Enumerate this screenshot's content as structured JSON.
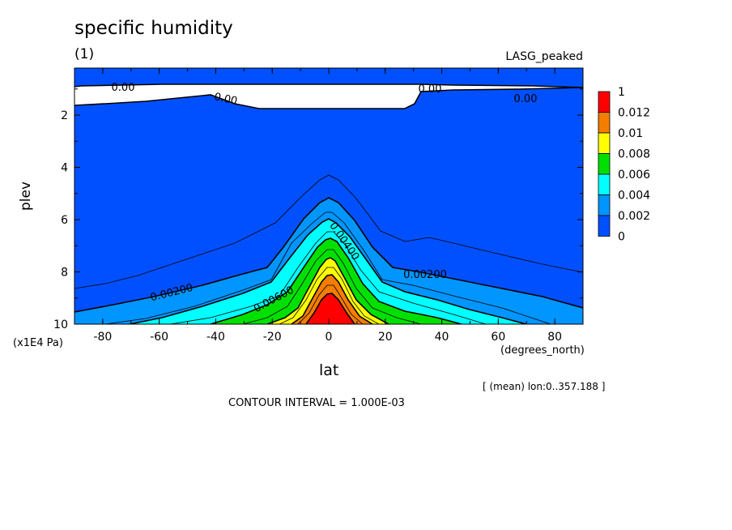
{
  "chart_data": {
    "type": "contour",
    "title": "specific humidity",
    "subtitle": "(1)",
    "run_label": "LASG_peaked",
    "xlabel": "lat",
    "xunits": "(degrees_north)",
    "ylabel": "plev",
    "yunits": "(x1E4 Pa)",
    "xlim": [
      -90,
      90
    ],
    "ylim": [
      0.2,
      10
    ],
    "x_ticks": [
      "-80",
      "-60",
      "-40",
      "-20",
      "0",
      "20",
      "40",
      "60",
      "80"
    ],
    "y_ticks": [
      "2",
      "4",
      "6",
      "8",
      "10"
    ],
    "note_mean": "[ (mean) lon:0..357.188 ]",
    "note_interval": "CONTOUR INTERVAL = 1.000E-03",
    "contour_labels": [
      "0.00",
      "0.00",
      "0.00",
      "0.00",
      "0.00200",
      "0.00200",
      "0.00400",
      "0.00600"
    ],
    "colorbar": {
      "labels": [
        "1",
        "0.012",
        "0.01",
        "0.008",
        "0.006",
        "0.004",
        "0.002",
        "0"
      ],
      "colors": [
        "#ff0000",
        "#f57d00",
        "#ffff00",
        "#00e000",
        "#00ffff",
        "#0095ff",
        "#0050ff"
      ]
    },
    "fill_colors": {
      "white": "#ffffff",
      "blue_dark": "#0050ff",
      "blue_light": "#0095ff",
      "cyan": "#00ffff",
      "green": "#00e000",
      "yellow": "#ffff00",
      "orange": "#f57d00",
      "red": "#ff0000"
    }
  }
}
